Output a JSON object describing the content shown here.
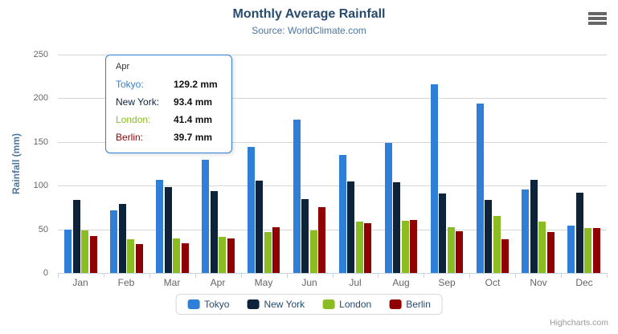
{
  "chart_data": {
    "type": "bar",
    "title": "Monthly Average Rainfall",
    "subtitle": "Source: WorldClimate.com",
    "categories": [
      "Jan",
      "Feb",
      "Mar",
      "Apr",
      "May",
      "Jun",
      "Jul",
      "Aug",
      "Sep",
      "Oct",
      "Nov",
      "Dec"
    ],
    "series": [
      {
        "name": "Tokyo",
        "color": "#2f7ed8",
        "values": [
          49.9,
          71.5,
          106.4,
          129.2,
          144.0,
          176.0,
          135.6,
          148.5,
          216.4,
          194.1,
          95.6,
          54.4
        ]
      },
      {
        "name": "New York",
        "color": "#0d233a",
        "values": [
          83.6,
          78.8,
          98.5,
          93.4,
          106.0,
          84.5,
          105.0,
          104.3,
          91.2,
          83.5,
          106.6,
          92.3
        ]
      },
      {
        "name": "London",
        "color": "#8bbc21",
        "values": [
          48.9,
          38.8,
          39.3,
          41.4,
          47.0,
          48.3,
          59.0,
          59.6,
          52.4,
          65.2,
          59.3,
          51.2
        ]
      },
      {
        "name": "Berlin",
        "color": "#910000",
        "values": [
          42.4,
          33.2,
          34.5,
          39.7,
          52.6,
          75.5,
          57.4,
          60.4,
          47.6,
          39.1,
          46.8,
          51.1
        ]
      }
    ],
    "xlabel": "",
    "ylabel": "Rainfall (mm)",
    "ylim": [
      0,
      250
    ],
    "yticks": [
      0,
      50,
      100,
      150,
      200,
      250
    ],
    "grid": true,
    "legend_position": "bottom-center",
    "value_suffix": " mm"
  },
  "tooltip": {
    "category": "Apr",
    "border_color": "#2f7ed8",
    "rows": [
      {
        "label": "Tokyo:",
        "value": "129.2 mm",
        "color": "#2f7ed8"
      },
      {
        "label": "New York:",
        "value": "93.4 mm",
        "color": "#0d233a"
      },
      {
        "label": "London:",
        "value": "41.4 mm",
        "color": "#8bbc21"
      },
      {
        "label": "Berlin:",
        "value": "39.7 mm",
        "color": "#910000"
      }
    ]
  },
  "credits": {
    "label": "Highcharts.com"
  },
  "colors": {
    "title": "#274b6d",
    "subtitle": "#4d759e",
    "axis_label": "#666666",
    "gridline": "#d6d6d6",
    "axis_line": "#c6d5e3"
  }
}
